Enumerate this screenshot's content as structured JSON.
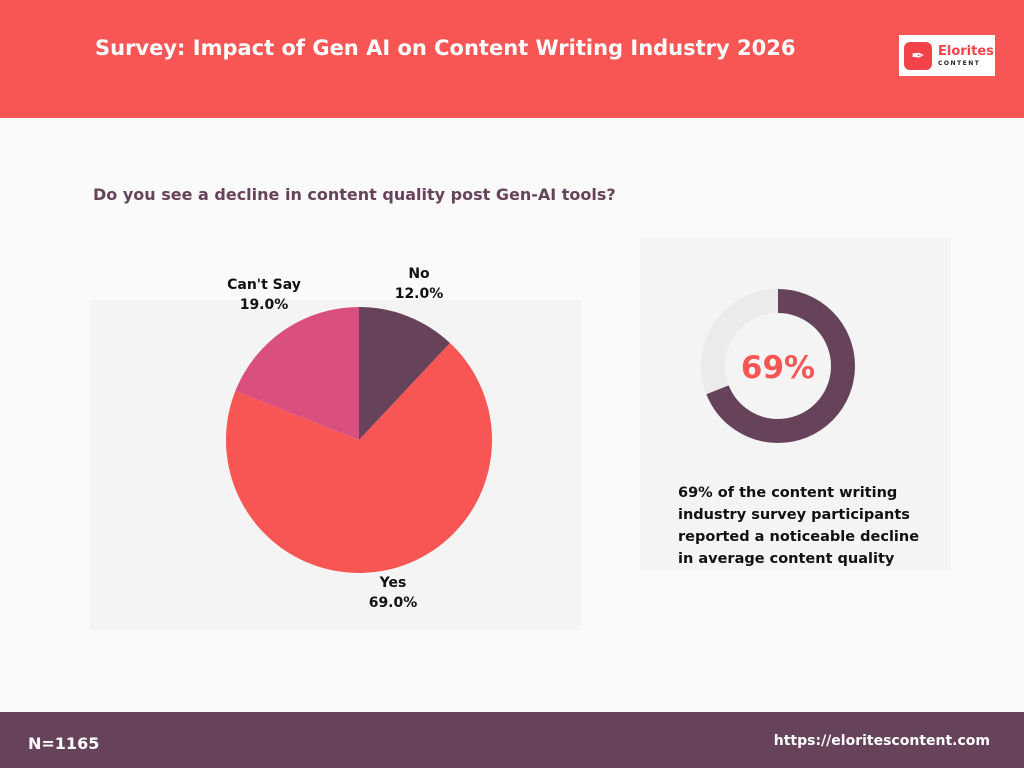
{
  "header": {
    "title": "Survey: Impact of Gen AI on Content Writing Industry 2026",
    "logo_text": "Elorites",
    "logo_sub": "CONTENT"
  },
  "question": "Do you see a decline in content quality post Gen-AI tools?",
  "chart_data": [
    {
      "type": "pie",
      "categories": [
        "No",
        "Yes",
        "Can't Say"
      ],
      "values": [
        12.0,
        69.0,
        19.0
      ],
      "labels": [
        "12.0%",
        "69.0%",
        "19.0%"
      ],
      "colors": [
        "#66435a",
        "#f75654",
        "#d9507e"
      ],
      "start": "top",
      "direction": "clockwise"
    },
    {
      "type": "donut",
      "value": 69,
      "label": "69%",
      "colors": {
        "fill": "#66435a",
        "track": "#ebebeb",
        "text": "#f75654"
      }
    }
  ],
  "donut_caption": "69% of the content writing industry survey participants reported a noticeable decline in average content quality",
  "footer": {
    "n": "N=1165",
    "url": "https://eloritescontent.com"
  }
}
